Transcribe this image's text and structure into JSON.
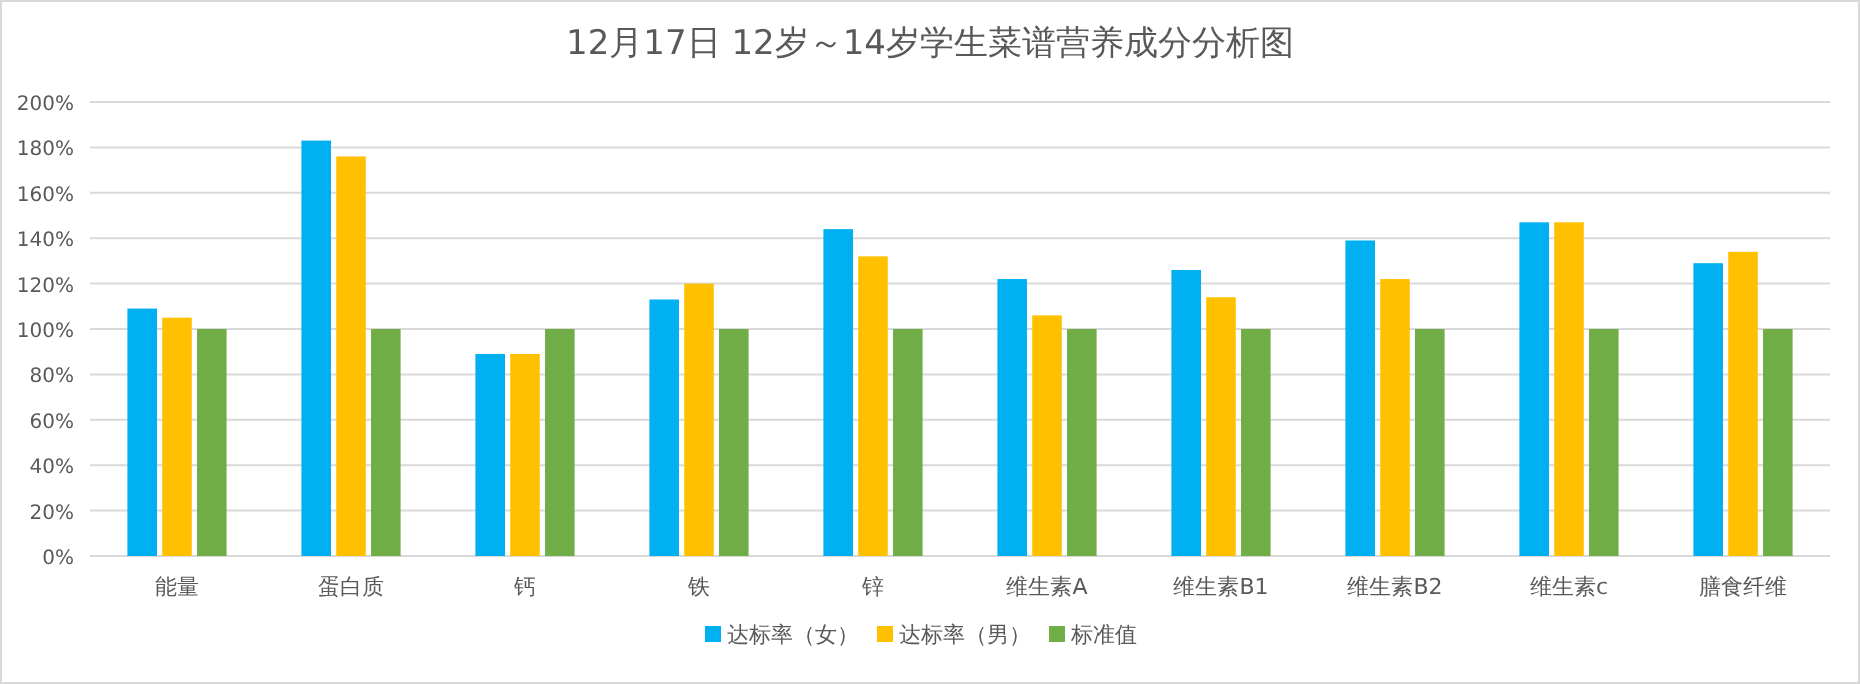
{
  "chart_data": {
    "type": "bar",
    "title": "12月17日 12岁～14岁学生菜谱营养成分分析图",
    "categories": [
      "能量",
      "蛋白质",
      "钙",
      "铁",
      "锌",
      "维生素A",
      "维生素B1",
      "维生素B2",
      "维生素c",
      "膳食纤维"
    ],
    "series": [
      {
        "name": "达标率（女）",
        "color": "#00b0f0",
        "values": [
          109,
          183,
          89,
          113,
          144,
          122,
          126,
          139,
          147,
          129
        ]
      },
      {
        "name": "达标率（男）",
        "color": "#ffc000",
        "values": [
          105,
          176,
          89,
          120,
          132,
          106,
          114,
          122,
          147,
          134
        ]
      },
      {
        "name": "标准值",
        "color": "#70ad47",
        "values": [
          100,
          100,
          100,
          100,
          100,
          100,
          100,
          100,
          100,
          100
        ]
      }
    ],
    "ylim": [
      0,
      200
    ],
    "yticks": [
      {
        "value": 0,
        "label": "0%"
      },
      {
        "value": 20,
        "label": "20%"
      },
      {
        "value": 40,
        "label": "40%"
      },
      {
        "value": 60,
        "label": "60%"
      },
      {
        "value": 80,
        "label": "80%"
      },
      {
        "value": 100,
        "label": "100%"
      },
      {
        "value": 120,
        "label": "120%"
      },
      {
        "value": 140,
        "label": "140%"
      },
      {
        "value": 160,
        "label": "160%"
      },
      {
        "value": 180,
        "label": "180%"
      },
      {
        "value": 200,
        "label": "200%"
      }
    ],
    "grid": "y",
    "legend": "bottom"
  }
}
